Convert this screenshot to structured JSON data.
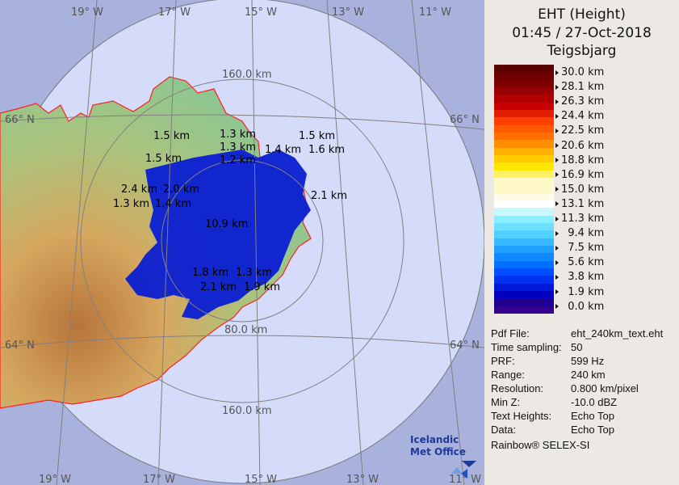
{
  "header": {
    "product": "EHT (Height)",
    "datetime": "01:45 / 27-Oct-2018",
    "site": "Teigsbjarg"
  },
  "legend": {
    "labels": [
      "30.0 km",
      "28.1 km",
      "26.3 km",
      "24.4 km",
      "22.5 km",
      "20.6 km",
      "18.8 km",
      "16.9 km",
      "15.0 km",
      "13.1 km",
      "11.3 km",
      "  9.4 km",
      "  7.5 km",
      "  5.6 km",
      "  3.8 km",
      "  1.9 km",
      "  0.0 km"
    ],
    "colors": [
      "#5a0000",
      "#700000",
      "#7e0000",
      "#960000",
      "#b20000",
      "#c80000",
      "#e02000",
      "#ff4000",
      "#ff5a00",
      "#ff7000",
      "#ff9000",
      "#ffb000",
      "#ffcc00",
      "#ffe600",
      "#fff066",
      "#fff8c8",
      "#fff8c8",
      "#fffbe6",
      "#ffffff",
      "#c8f8ff",
      "#88f0ff",
      "#6ee0ff",
      "#50d0ff",
      "#38b8ff",
      "#20a0ff",
      "#1088ff",
      "#0070ff",
      "#0050ff",
      "#0030f0",
      "#0018d8",
      "#0000c0",
      "#200090",
      "#380090"
    ]
  },
  "info": [
    {
      "label": "Pdf File:",
      "value": "eht_240km_text.eht"
    },
    {
      "label": "Time sampling:",
      "value": "50"
    },
    {
      "label": "PRF:",
      "value": "599 Hz"
    },
    {
      "label": "Range:",
      "value": "240 km"
    },
    {
      "label": "Resolution:",
      "value": "0.800 km/pixel"
    },
    {
      "label": "Min Z:",
      "value": "-10.0 dBZ"
    },
    {
      "label": "Text Heights:",
      "value": "Echo Top"
    },
    {
      "label": "Data:",
      "value": "Echo Top"
    }
  ],
  "footer": "Rainbow® SELEX-SI",
  "map": {
    "lon_top": [
      "19° W",
      "17° W",
      "15° W",
      "13° W",
      "11° W"
    ],
    "lon_bottom": [
      "19° W",
      "17° W",
      "15° W",
      "13° W",
      "11° W"
    ],
    "lat": [
      "66° N",
      "64° N"
    ],
    "rings": [
      "160.0 km",
      "80.0 km",
      "160.0 km"
    ],
    "echo_labels": [
      "1.5 km",
      "1.5 km",
      "1.3 km",
      "1.3 km",
      "1.2 km",
      "1.5 km",
      "1.4 km",
      "1.6 km",
      "2.1 km",
      "2.4 km",
      "2.0 km",
      "1.3 km",
      "1.4 km",
      "10.9 km",
      "1.8 km",
      "1.3 km",
      "1.9 km",
      "2.1 km"
    ],
    "logo": "Icelandic Met Office",
    "colors": {
      "outside": "#a9b2dc",
      "disc": "#d5dcfa",
      "echo": "#0a1ed2",
      "coast": "#ff2020"
    }
  }
}
